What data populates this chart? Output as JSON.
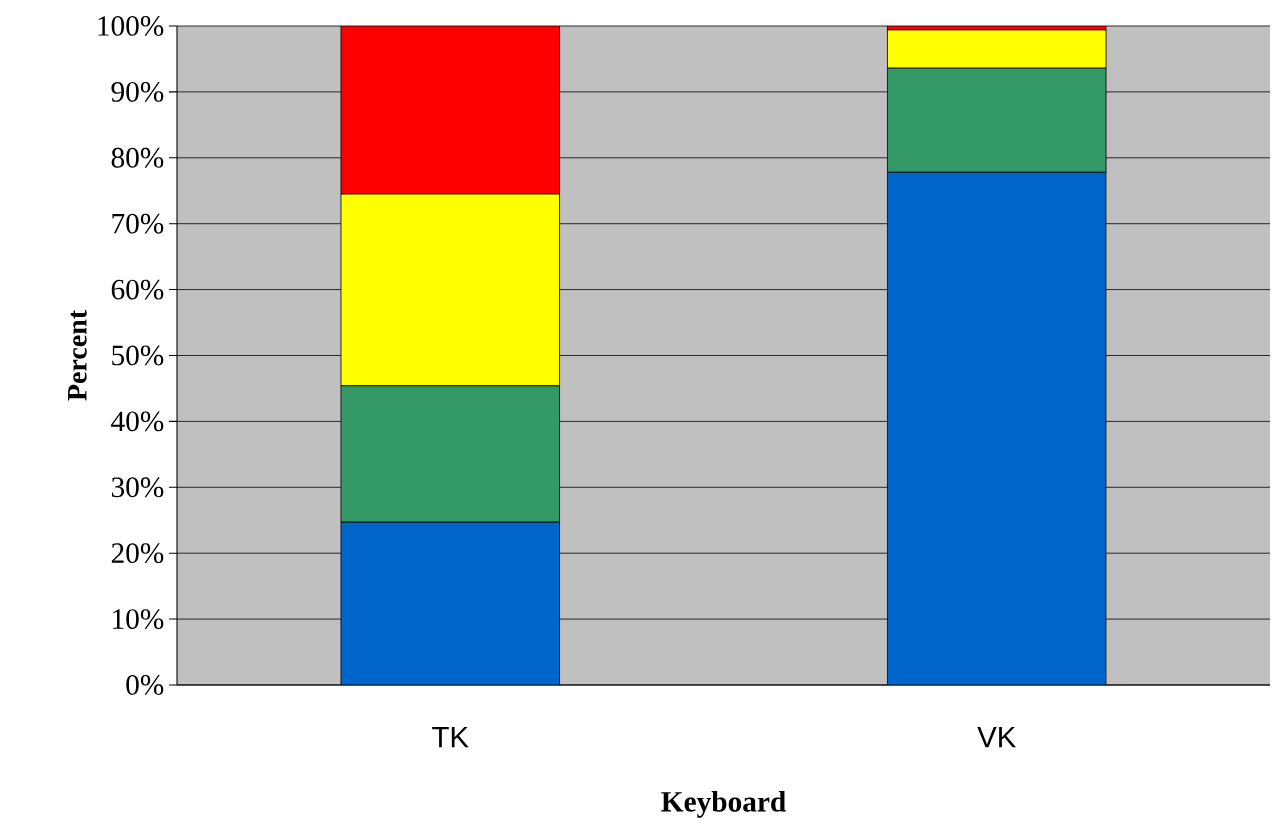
{
  "chart_data": {
    "type": "bar",
    "stacked": true,
    "xlabel": "Keyboard",
    "ylabel": "Percent",
    "categories": [
      "TK",
      "VK"
    ],
    "series": [
      {
        "color": "#0066cc",
        "values": [
          24.7,
          77.8
        ]
      },
      {
        "color": "#339966",
        "values": [
          20.7,
          15.8
        ]
      },
      {
        "color": "#ffff00",
        "values": [
          29.1,
          5.8
        ]
      },
      {
        "color": "#ff0000",
        "values": [
          25.5,
          0.6
        ]
      }
    ],
    "ylim": [
      0,
      100
    ],
    "yticks": [
      {
        "value": 0,
        "label": "0%"
      },
      {
        "value": 10,
        "label": "10%"
      },
      {
        "value": 20,
        "label": "20%"
      },
      {
        "value": 30,
        "label": "30%"
      },
      {
        "value": 40,
        "label": "40%"
      },
      {
        "value": 50,
        "label": "50%"
      },
      {
        "value": 60,
        "label": "60%"
      },
      {
        "value": 70,
        "label": "70%"
      },
      {
        "value": 80,
        "label": "80%"
      },
      {
        "value": 90,
        "label": "90%"
      },
      {
        "value": 100,
        "label": "100%"
      }
    ],
    "grid": "y"
  }
}
